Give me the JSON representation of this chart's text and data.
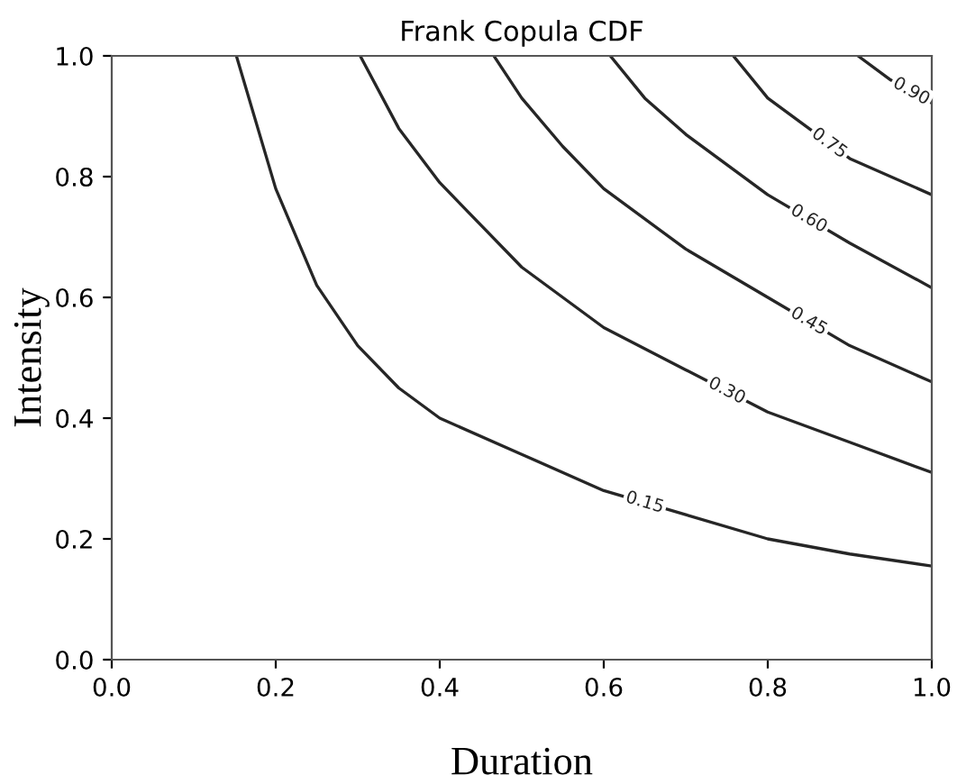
{
  "chart_data": {
    "type": "line",
    "title": "Frank Copula CDF",
    "xlabel": "Duration",
    "ylabel": "Intensity",
    "xlim": [
      0,
      1
    ],
    "ylim": [
      0,
      1
    ],
    "xticks": [
      {
        "value": 0,
        "label": "0.0"
      },
      0.2,
      0.4,
      0.6,
      0.8,
      {
        "value": 1,
        "label": "1.0"
      }
    ],
    "yticks": [
      {
        "value": 0,
        "label": "0.0"
      },
      0.2,
      0.4,
      0.6,
      0.8,
      {
        "value": 1,
        "label": "1.0"
      }
    ],
    "grid": false,
    "legend": false,
    "marker": "none",
    "line_style": "solid",
    "series": [
      {
        "name": "0.15",
        "color": "#262626",
        "x": [
          0.152,
          0.2,
          0.25,
          0.3,
          0.35,
          0.4,
          0.5,
          0.6,
          0.7,
          0.8,
          0.9,
          1.0
        ],
        "values": [
          1.0,
          0.78,
          0.62,
          0.52,
          0.45,
          0.4,
          0.34,
          0.28,
          0.24,
          0.2,
          0.175,
          0.155
        ]
      },
      {
        "name": "0.30",
        "color": "#262626",
        "x": [
          0.303,
          0.35,
          0.4,
          0.45,
          0.5,
          0.6,
          0.7,
          0.8,
          0.9,
          1.0
        ],
        "values": [
          1.0,
          0.88,
          0.79,
          0.72,
          0.65,
          0.55,
          0.48,
          0.41,
          0.36,
          0.31
        ]
      },
      {
        "name": "0.45",
        "color": "#262626",
        "x": [
          0.466,
          0.5,
          0.55,
          0.6,
          0.7,
          0.8,
          0.9,
          1.0
        ],
        "values": [
          1.0,
          0.93,
          0.85,
          0.78,
          0.68,
          0.6,
          0.52,
          0.46
        ]
      },
      {
        "name": "0.60",
        "color": "#262626",
        "x": [
          0.608,
          0.65,
          0.7,
          0.8,
          0.9,
          1.0
        ],
        "values": [
          1.0,
          0.93,
          0.87,
          0.77,
          0.69,
          0.616
        ]
      },
      {
        "name": "0.75",
        "color": "#262626",
        "x": [
          0.758,
          0.8,
          0.85,
          0.9,
          1.0
        ],
        "values": [
          1.0,
          0.93,
          0.88,
          0.83,
          0.77
        ]
      },
      {
        "name": "0.90",
        "color": "#262626",
        "x": [
          0.91,
          0.95,
          1.0
        ],
        "values": [
          1.0,
          0.96,
          0.922
        ]
      }
    ]
  }
}
